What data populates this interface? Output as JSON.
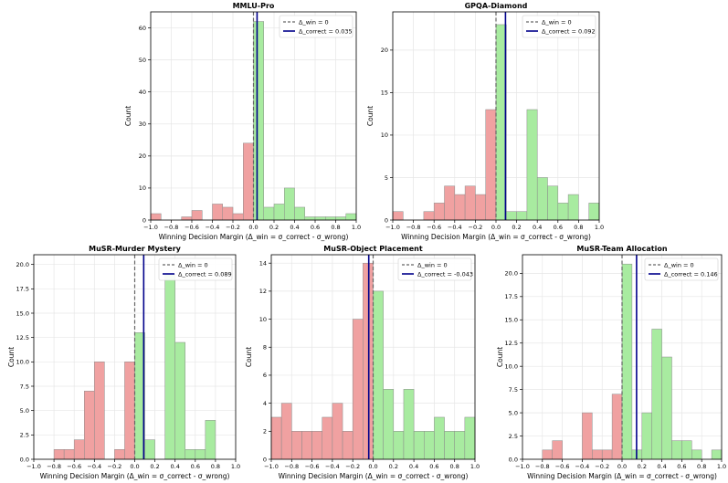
{
  "colors": {
    "negative_fill": "#f0a1a1",
    "positive_fill": "#a8eba0",
    "bar_edge": "#8a8a8a",
    "win_line": "#666666",
    "correct_line": "#00008b",
    "grid": "#e6e6e6"
  },
  "chart_data": [
    {
      "type": "bar",
      "title": "MMLU-Pro",
      "xlabel": "Winning Decision Margin (Δ_win = σ_correct - σ_wrong)",
      "ylabel": "Count",
      "xlim": [
        -1.0,
        1.0
      ],
      "ylim": [
        0,
        65
      ],
      "xticks": [
        -1.0,
        -0.8,
        -0.6,
        -0.4,
        -0.2,
        0.0,
        0.2,
        0.4,
        0.6,
        0.8,
        1.0
      ],
      "xtick_labels": [
        "−1.0",
        "−0.8",
        "−0.6",
        "−0.4",
        "−0.2",
        "0.0",
        "0.2",
        "0.4",
        "0.6",
        "0.8",
        "1.0"
      ],
      "yticks": [
        0,
        10,
        20,
        30,
        40,
        50,
        60
      ],
      "ytick_labels": [
        "0",
        "10",
        "20",
        "30",
        "40",
        "50",
        "60"
      ],
      "bin_width": 0.1,
      "negative_bins": [
        {
          "x": -1.0,
          "count": 2
        },
        {
          "x": -0.9,
          "count": 0
        },
        {
          "x": -0.8,
          "count": 0
        },
        {
          "x": -0.7,
          "count": 1
        },
        {
          "x": -0.6,
          "count": 3
        },
        {
          "x": -0.5,
          "count": 0
        },
        {
          "x": -0.4,
          "count": 5
        },
        {
          "x": -0.3,
          "count": 4
        },
        {
          "x": -0.2,
          "count": 2
        },
        {
          "x": -0.1,
          "count": 24
        }
      ],
      "positive_bins": [
        {
          "x": 0.0,
          "count": 62
        },
        {
          "x": 0.1,
          "count": 4
        },
        {
          "x": 0.2,
          "count": 5
        },
        {
          "x": 0.3,
          "count": 10
        },
        {
          "x": 0.4,
          "count": 4
        },
        {
          "x": 0.5,
          "count": 1
        },
        {
          "x": 0.6,
          "count": 1
        },
        {
          "x": 0.7,
          "count": 1
        },
        {
          "x": 0.8,
          "count": 1
        },
        {
          "x": 0.9,
          "count": 2
        }
      ],
      "win_line_x": 0,
      "correct_line_x": 0.035,
      "legend": [
        "Δ_win = 0",
        "Δ_correct = 0.035"
      ],
      "legend_loc": "top-right"
    },
    {
      "type": "bar",
      "title": "GPQA-Diamond",
      "xlabel": "Winning Decision Margin (Δ_win = σ_correct - σ_wrong)",
      "ylabel": "Count",
      "xlim": [
        -1.0,
        1.0
      ],
      "ylim": [
        0,
        24.5
      ],
      "xticks": [
        -1.0,
        -0.8,
        -0.6,
        -0.4,
        -0.2,
        0.0,
        0.2,
        0.4,
        0.6,
        0.8,
        1.0
      ],
      "xtick_labels": [
        "−1.0",
        "−0.8",
        "−0.6",
        "−0.4",
        "−0.2",
        "0.0",
        "0.2",
        "0.4",
        "0.6",
        "0.8",
        "1.0"
      ],
      "yticks": [
        0,
        5,
        10,
        15,
        20
      ],
      "ytick_labels": [
        "0",
        "5",
        "10",
        "15",
        "20"
      ],
      "bin_width": 0.1,
      "negative_bins": [
        {
          "x": -1.0,
          "count": 1
        },
        {
          "x": -0.9,
          "count": 0
        },
        {
          "x": -0.8,
          "count": 0
        },
        {
          "x": -0.7,
          "count": 1
        },
        {
          "x": -0.6,
          "count": 2
        },
        {
          "x": -0.5,
          "count": 4
        },
        {
          "x": -0.4,
          "count": 3
        },
        {
          "x": -0.3,
          "count": 4
        },
        {
          "x": -0.2,
          "count": 3
        },
        {
          "x": -0.1,
          "count": 13
        }
      ],
      "positive_bins": [
        {
          "x": 0.0,
          "count": 23
        },
        {
          "x": 0.1,
          "count": 1
        },
        {
          "x": 0.2,
          "count": 1
        },
        {
          "x": 0.3,
          "count": 13
        },
        {
          "x": 0.4,
          "count": 5
        },
        {
          "x": 0.5,
          "count": 4
        },
        {
          "x": 0.6,
          "count": 2
        },
        {
          "x": 0.7,
          "count": 3
        },
        {
          "x": 0.8,
          "count": 0
        },
        {
          "x": 0.9,
          "count": 2
        }
      ],
      "win_line_x": 0,
      "correct_line_x": 0.092,
      "legend": [
        "Δ_win = 0",
        "Δ_correct = 0.092"
      ],
      "legend_loc": "top-right"
    },
    {
      "type": "bar",
      "title": "MuSR-Murder Mystery",
      "xlabel": "Winning Decision Margin (Δ_win = σ_correct - σ_wrong)",
      "ylabel": "Count",
      "xlim": [
        -1.0,
        1.0
      ],
      "ylim": [
        0,
        21
      ],
      "xticks": [
        -1.0,
        -0.8,
        -0.6,
        -0.4,
        -0.2,
        0.0,
        0.2,
        0.4,
        0.6,
        0.8,
        1.0
      ],
      "xtick_labels": [
        "−1.0",
        "−0.8",
        "−0.6",
        "−0.4",
        "−0.2",
        "0.0",
        "0.2",
        "0.4",
        "0.6",
        "0.8",
        "1.0"
      ],
      "yticks": [
        0,
        2.5,
        5,
        7.5,
        10,
        12.5,
        15,
        17.5,
        20
      ],
      "ytick_labels": [
        "0.0",
        "2.5",
        "5.0",
        "7.5",
        "10.0",
        "12.5",
        "15.0",
        "17.5",
        "20.0"
      ],
      "bin_width": 0.1,
      "negative_bins": [
        {
          "x": -0.8,
          "count": 1
        },
        {
          "x": -0.7,
          "count": 1
        },
        {
          "x": -0.6,
          "count": 2
        },
        {
          "x": -0.5,
          "count": 7
        },
        {
          "x": -0.4,
          "count": 10
        },
        {
          "x": -0.3,
          "count": 0
        },
        {
          "x": -0.2,
          "count": 1
        },
        {
          "x": -0.1,
          "count": 10
        }
      ],
      "positive_bins": [
        {
          "x": 0.0,
          "count": 13
        },
        {
          "x": 0.1,
          "count": 2
        },
        {
          "x": 0.2,
          "count": 0
        },
        {
          "x": 0.3,
          "count": 19
        },
        {
          "x": 0.4,
          "count": 12
        },
        {
          "x": 0.5,
          "count": 1
        },
        {
          "x": 0.6,
          "count": 1
        },
        {
          "x": 0.7,
          "count": 4
        }
      ],
      "win_line_x": 0,
      "correct_line_x": 0.089,
      "legend": [
        "Δ_win = 0",
        "Δ_correct = 0.089"
      ],
      "legend_loc": "top-right"
    },
    {
      "type": "bar",
      "title": "MuSR-Object Placement",
      "xlabel": "Winning Decision Margin (Δ_win = σ_correct - σ_wrong)",
      "ylabel": "Count",
      "xlim": [
        -1.0,
        1.0
      ],
      "ylim": [
        0,
        14.6
      ],
      "xticks": [
        -1.0,
        -0.8,
        -0.6,
        -0.4,
        -0.2,
        0.0,
        0.2,
        0.4,
        0.6,
        0.8,
        1.0
      ],
      "xtick_labels": [
        "−1.0",
        "−0.8",
        "−0.6",
        "−0.4",
        "−0.2",
        "0.0",
        "0.2",
        "0.4",
        "0.6",
        "0.8",
        "1.0"
      ],
      "yticks": [
        0,
        2,
        4,
        6,
        8,
        10,
        12,
        14
      ],
      "ytick_labels": [
        "0",
        "2",
        "4",
        "6",
        "8",
        "10",
        "12",
        "14"
      ],
      "bin_width": 0.1,
      "negative_bins": [
        {
          "x": -1.0,
          "count": 3
        },
        {
          "x": -0.9,
          "count": 4
        },
        {
          "x": -0.8,
          "count": 2
        },
        {
          "x": -0.7,
          "count": 2
        },
        {
          "x": -0.6,
          "count": 2
        },
        {
          "x": -0.5,
          "count": 3
        },
        {
          "x": -0.4,
          "count": 4
        },
        {
          "x": -0.3,
          "count": 2
        },
        {
          "x": -0.2,
          "count": 10
        },
        {
          "x": -0.1,
          "count": 14
        }
      ],
      "positive_bins": [
        {
          "x": 0.0,
          "count": 12
        },
        {
          "x": 0.1,
          "count": 5
        },
        {
          "x": 0.2,
          "count": 2
        },
        {
          "x": 0.3,
          "count": 5
        },
        {
          "x": 0.4,
          "count": 2
        },
        {
          "x": 0.5,
          "count": 2
        },
        {
          "x": 0.6,
          "count": 3
        },
        {
          "x": 0.7,
          "count": 2
        },
        {
          "x": 0.8,
          "count": 2
        },
        {
          "x": 0.9,
          "count": 3
        }
      ],
      "win_line_x": 0,
      "correct_line_x": -0.043,
      "legend": [
        "Δ_win = 0",
        "Δ_correct = -0.043"
      ],
      "legend_loc": "top-right"
    },
    {
      "type": "bar",
      "title": "MuSR-Team Allocation",
      "xlabel": "Winning Decision Margin (Δ_win = σ_correct - σ_wrong)",
      "ylabel": "Count",
      "xlim": [
        -1.0,
        1.0
      ],
      "ylim": [
        0,
        22
      ],
      "xticks": [
        -1.0,
        -0.8,
        -0.6,
        -0.4,
        -0.2,
        0.0,
        0.2,
        0.4,
        0.6,
        0.8,
        1.0
      ],
      "xtick_labels": [
        "−1.0",
        "−0.8",
        "−0.6",
        "−0.4",
        "−0.2",
        "0.0",
        "0.2",
        "0.4",
        "0.6",
        "0.8",
        "1.0"
      ],
      "yticks": [
        0,
        2.5,
        5,
        7.5,
        10,
        12.5,
        15,
        17.5,
        20
      ],
      "ytick_labels": [
        "0.0",
        "2.5",
        "5.0",
        "7.5",
        "10.0",
        "12.5",
        "15.0",
        "17.5",
        "20.0"
      ],
      "bin_width": 0.1,
      "negative_bins": [
        {
          "x": -0.8,
          "count": 1
        },
        {
          "x": -0.7,
          "count": 2
        },
        {
          "x": -0.6,
          "count": 0
        },
        {
          "x": -0.5,
          "count": 0
        },
        {
          "x": -0.4,
          "count": 5
        },
        {
          "x": -0.3,
          "count": 1
        },
        {
          "x": -0.2,
          "count": 1
        },
        {
          "x": -0.1,
          "count": 7
        }
      ],
      "positive_bins": [
        {
          "x": 0.0,
          "count": 21
        },
        {
          "x": 0.1,
          "count": 1
        },
        {
          "x": 0.2,
          "count": 5
        },
        {
          "x": 0.3,
          "count": 14
        },
        {
          "x": 0.4,
          "count": 11
        },
        {
          "x": 0.5,
          "count": 2
        },
        {
          "x": 0.6,
          "count": 2
        },
        {
          "x": 0.7,
          "count": 1
        },
        {
          "x": 0.8,
          "count": 0
        },
        {
          "x": 0.9,
          "count": 1
        }
      ],
      "win_line_x": 0,
      "correct_line_x": 0.146,
      "legend": [
        "Δ_win = 0",
        "Δ_correct = 0.146"
      ],
      "legend_loc": "top-right"
    }
  ]
}
